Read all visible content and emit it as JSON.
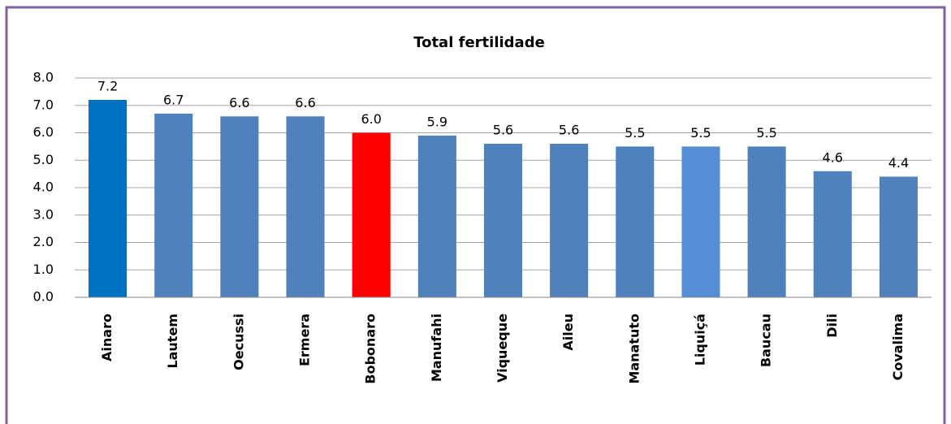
{
  "chart_data": {
    "type": "bar",
    "title": "Total fertilidade",
    "categories": [
      "Ainaro",
      "Lautem",
      "Oecussi",
      "Ermera",
      "Bobonaro",
      "Manufahi",
      "Viqueque",
      "Aileu",
      "Manatuto",
      "Liquiçá",
      "Baucau",
      "Dili",
      "Covalima"
    ],
    "values": [
      7.2,
      6.7,
      6.6,
      6.6,
      6.0,
      5.9,
      5.6,
      5.6,
      5.5,
      5.5,
      5.5,
      4.6,
      4.4
    ],
    "value_labels": [
      "7.2",
      "6.7",
      "6.6",
      "6.6",
      "6.0",
      "5.9",
      "5.6",
      "5.6",
      "5.5",
      "5.5",
      "5.5",
      "4.6",
      "4.4"
    ],
    "colors": [
      "#0070c0",
      "#4f81bd",
      "#4f81bd",
      "#4f81bd",
      "#ff0000",
      "#4f81bd",
      "#4f81bd",
      "#4f81bd",
      "#4f81bd",
      "#558ed5",
      "#4f81bd",
      "#4f81bd",
      "#4f81bd"
    ],
    "ylim": [
      0,
      8
    ],
    "yticks": [
      {
        "value": 0,
        "label": "0.0"
      },
      {
        "value": 1,
        "label": "1.0"
      },
      {
        "value": 2,
        "label": "2.0"
      },
      {
        "value": 3,
        "label": "3.0"
      },
      {
        "value": 4,
        "label": "4.0"
      },
      {
        "value": 5,
        "label": "5.0"
      },
      {
        "value": 6,
        "label": "6.0"
      },
      {
        "value": 7,
        "label": "7.0"
      },
      {
        "value": 8,
        "label": "8.0"
      }
    ],
    "grid": true
  }
}
